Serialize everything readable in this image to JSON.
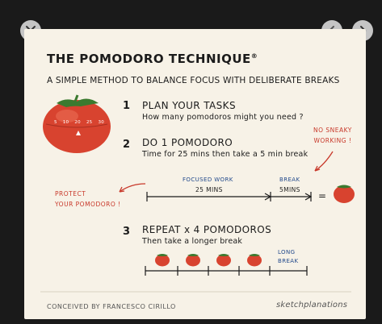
{
  "viewer": {
    "close_icon": "close-icon",
    "prev_icon": "chevron-left-icon",
    "next_icon": "chevron-right-icon"
  },
  "card": {
    "title": "THE POMODORO TECHNIQUE",
    "title_mark": "®",
    "subtitle": "A SIMPLE METHOD TO BALANCE FOCUS WITH DELIBERATE BREAKS",
    "timer_ticks": [
      "5",
      "10",
      "20",
      "25",
      "30"
    ],
    "steps": [
      {
        "num": "1",
        "title": "PLAN YOUR TASKS",
        "desc": "How many pomodoros might you need ?"
      },
      {
        "num": "2",
        "title": "DO 1 POMODORO",
        "desc": "Time for 25 mins then take a 5 min break"
      },
      {
        "num": "3",
        "title": "REPEAT x 4 POMODOROS",
        "desc": "Then take a longer break"
      }
    ],
    "notes": {
      "no_sneaky_1": "NO SNEAKY",
      "no_sneaky_2": "WORKING !",
      "protect_1": "PROTECT",
      "protect_2": "YOUR POMODORO !",
      "focused_work": "FOCUSED WORK",
      "break": "BREAK",
      "long_break_1": "LONG",
      "long_break_2": "BREAK"
    },
    "timeline": {
      "work_label": "25 MINS",
      "break_label": "5MINS",
      "equals": "="
    },
    "footer": {
      "credit": "CONCEIVED BY FRANCESCO CIRILLO",
      "brand": "sketchplanations"
    },
    "colors": {
      "accent_red": "#c8382a",
      "accent_blue": "#234a8c",
      "paper": "#f7f2e7"
    }
  }
}
